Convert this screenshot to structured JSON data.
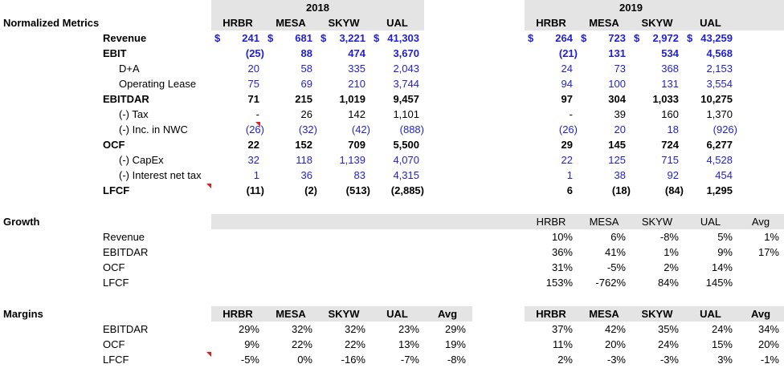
{
  "years": [
    "2018",
    "2019"
  ],
  "tickers": [
    "HRBR",
    "MESA",
    "SKYW",
    "UAL"
  ],
  "avg_label": "Avg",
  "currency_symbol": "$",
  "colors": {
    "input_blue": "#1f1fd8",
    "header_gray": "#e4e4e4",
    "comment_red": "#e01e1e"
  },
  "sections": {
    "normalized": "Normalized Metrics",
    "growth": "Growth",
    "margins": "Margins"
  },
  "metrics": [
    {
      "label": "Revenue",
      "bold": true,
      "indent": 0,
      "blue": true,
      "dollar": true,
      "y2018": [
        "241",
        "681",
        "3,221",
        "41,303"
      ],
      "y2019": [
        "264",
        "723",
        "2,972",
        "43,259"
      ]
    },
    {
      "label": "EBIT",
      "bold": true,
      "indent": 0,
      "blue": true,
      "y2018": [
        "(25)",
        "88",
        "474",
        "3,670"
      ],
      "y2019": [
        "(21)",
        "131",
        "534",
        "4,568"
      ]
    },
    {
      "label": "D+A",
      "bold": false,
      "indent": 1,
      "blue": true,
      "y2018": [
        "20",
        "58",
        "335",
        "2,043"
      ],
      "y2019": [
        "24",
        "73",
        "368",
        "2,153"
      ]
    },
    {
      "label": "Operating Lease",
      "bold": false,
      "indent": 1,
      "blue": true,
      "y2018": [
        "75",
        "69",
        "210",
        "3,744"
      ],
      "y2019": [
        "94",
        "100",
        "131",
        "3,554"
      ]
    },
    {
      "label": "EBITDAR",
      "bold": true,
      "indent": 0,
      "blue": false,
      "y2018": [
        "71",
        "215",
        "1,019",
        "9,457"
      ],
      "y2019": [
        "97",
        "304",
        "1,033",
        "10,275"
      ]
    },
    {
      "label": "(-) Tax",
      "bold": false,
      "indent": 1,
      "blue": false,
      "y2018": [
        "-",
        "26",
        "142",
        "1,101"
      ],
      "y2019": [
        "-",
        "39",
        "160",
        "1,370"
      ]
    },
    {
      "label": "(-) Inc. in NWC",
      "bold": false,
      "indent": 1,
      "blue": true,
      "y2018": [
        "(26)",
        "(32)",
        "(42)",
        "(888)"
      ],
      "y2019": [
        "(26)",
        "20",
        "18",
        "(926)"
      ]
    },
    {
      "label": "OCF",
      "bold": true,
      "indent": 0,
      "blue": false,
      "y2018": [
        "22",
        "152",
        "709",
        "5,500"
      ],
      "y2019": [
        "29",
        "145",
        "724",
        "6,277"
      ]
    },
    {
      "label": "(-) CapEx",
      "bold": false,
      "indent": 1,
      "blue": true,
      "y2018": [
        "32",
        "118",
        "1,139",
        "4,070"
      ],
      "y2019": [
        "22",
        "125",
        "715",
        "4,528"
      ]
    },
    {
      "label": "(-) Interest net tax",
      "bold": false,
      "indent": 1,
      "blue": true,
      "y2018": [
        "1",
        "36",
        "83",
        "4,315"
      ],
      "y2019": [
        "1",
        "38",
        "92",
        "454"
      ]
    },
    {
      "label": "LFCF",
      "bold": true,
      "indent": 0,
      "blue": false,
      "y2018": [
        "(11)",
        "(2)",
        "(513)",
        "(2,885)"
      ],
      "y2019": [
        "6",
        "(18)",
        "(84)",
        "1,295"
      ]
    }
  ],
  "growth": [
    {
      "label": "Revenue",
      "values": [
        "10%",
        "6%",
        "-8%",
        "5%",
        "1%"
      ]
    },
    {
      "label": "EBITDAR",
      "values": [
        "36%",
        "41%",
        "1%",
        "9%",
        "17%"
      ]
    },
    {
      "label": "OCF",
      "values": [
        "31%",
        "-5%",
        "2%",
        "14%",
        ""
      ]
    },
    {
      "label": "LFCF",
      "values": [
        "153%",
        "-762%",
        "84%",
        "145%",
        ""
      ]
    }
  ],
  "margins": [
    {
      "label": "EBITDAR",
      "y2018": [
        "29%",
        "32%",
        "32%",
        "23%",
        "29%"
      ],
      "y2019": [
        "37%",
        "42%",
        "35%",
        "24%",
        "34%"
      ]
    },
    {
      "label": "OCF",
      "y2018": [
        "9%",
        "22%",
        "22%",
        "13%",
        "19%"
      ],
      "y2019": [
        "11%",
        "20%",
        "24%",
        "15%",
        "20%"
      ]
    },
    {
      "label": "LFCF",
      "y2018": [
        "-5%",
        "0%",
        "-16%",
        "-7%",
        "-8%"
      ],
      "y2019": [
        "2%",
        "-3%",
        "-3%",
        "3%",
        "-1%"
      ]
    }
  ]
}
